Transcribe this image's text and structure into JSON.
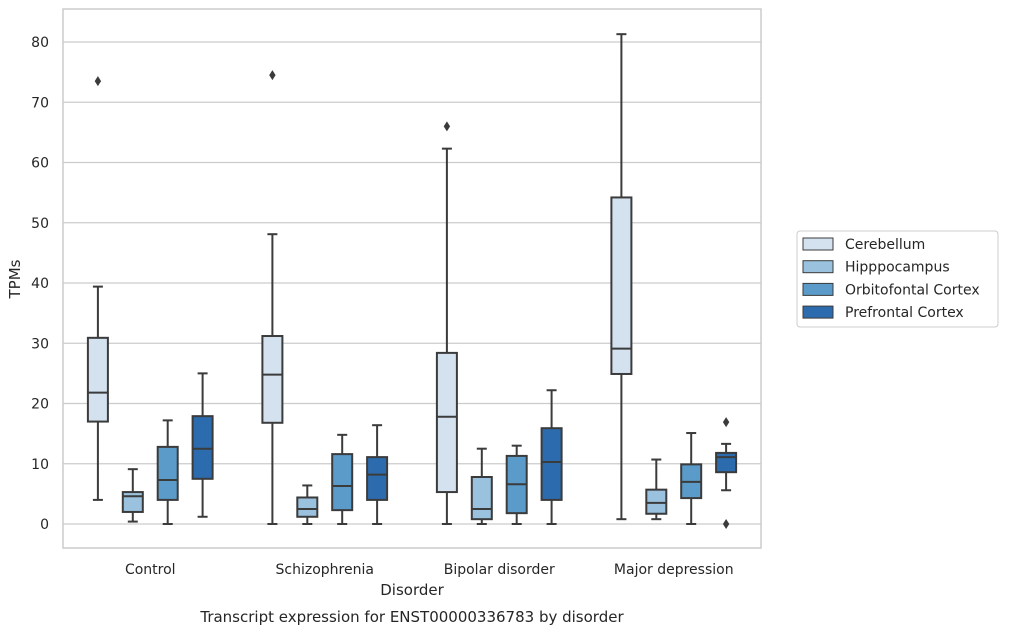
{
  "chart_data": {
    "type": "box",
    "caption": "Transcript expression for ENST00000336783 by disorder",
    "xlabel": "Disorder",
    "ylabel": "TPMs",
    "ylim": [
      -4,
      85
    ],
    "yticks": [
      0,
      10,
      20,
      30,
      40,
      50,
      60,
      70,
      80
    ],
    "grid": "horizontal",
    "legend_position": "right",
    "categories": [
      "Control",
      "Schizophrenia",
      "Bipolar disorder",
      "Major depression"
    ],
    "series": [
      {
        "name": "Cerebellum",
        "color": "#d4e2f0",
        "boxes": [
          {
            "whisker_low": 4.0,
            "q1": 17.0,
            "median": 21.8,
            "q3": 30.9,
            "whisker_high": 39.4,
            "outliers": [
              73.5
            ]
          },
          {
            "whisker_low": 0.0,
            "q1": 16.8,
            "median": 24.8,
            "q3": 31.2,
            "whisker_high": 48.1,
            "outliers": [
              74.5
            ]
          },
          {
            "whisker_low": 0.0,
            "q1": 5.3,
            "median": 17.8,
            "q3": 28.4,
            "whisker_high": 62.3,
            "outliers": [
              66.0
            ]
          },
          {
            "whisker_low": 0.8,
            "q1": 24.9,
            "median": 29.1,
            "q3": 54.2,
            "whisker_high": 81.3,
            "outliers": []
          }
        ]
      },
      {
        "name": "Hipppocampus",
        "color": "#9ac1dd",
        "boxes": [
          {
            "whisker_low": 0.4,
            "q1": 2.0,
            "median": 4.6,
            "q3": 5.3,
            "whisker_high": 9.1,
            "outliers": []
          },
          {
            "whisker_low": 0.0,
            "q1": 1.2,
            "median": 2.5,
            "q3": 4.4,
            "whisker_high": 6.4,
            "outliers": []
          },
          {
            "whisker_low": 0.0,
            "q1": 0.8,
            "median": 2.5,
            "q3": 7.8,
            "whisker_high": 12.5,
            "outliers": []
          },
          {
            "whisker_low": 0.8,
            "q1": 1.7,
            "median": 3.5,
            "q3": 5.7,
            "whisker_high": 10.7,
            "outliers": []
          }
        ]
      },
      {
        "name": "Orbitofontal Cortex",
        "color": "#5a9bc9",
        "boxes": [
          {
            "whisker_low": 0.0,
            "q1": 4.0,
            "median": 7.3,
            "q3": 12.8,
            "whisker_high": 17.2,
            "outliers": []
          },
          {
            "whisker_low": 0.0,
            "q1": 2.3,
            "median": 6.3,
            "q3": 11.6,
            "whisker_high": 14.8,
            "outliers": []
          },
          {
            "whisker_low": 0.0,
            "q1": 1.8,
            "median": 6.6,
            "q3": 11.3,
            "whisker_high": 13.0,
            "outliers": []
          },
          {
            "whisker_low": 0.0,
            "q1": 4.3,
            "median": 7.0,
            "q3": 9.9,
            "whisker_high": 15.1,
            "outliers": []
          }
        ]
      },
      {
        "name": "Prefrontal Cortex",
        "color": "#2c6cae",
        "boxes": [
          {
            "whisker_low": 1.2,
            "q1": 7.5,
            "median": 12.5,
            "q3": 17.9,
            "whisker_high": 25.0,
            "outliers": []
          },
          {
            "whisker_low": 0.0,
            "q1": 4.0,
            "median": 8.2,
            "q3": 11.1,
            "whisker_high": 16.4,
            "outliers": []
          },
          {
            "whisker_low": 0.0,
            "q1": 4.0,
            "median": 10.3,
            "q3": 15.9,
            "whisker_high": 22.2,
            "outliers": []
          },
          {
            "whisker_low": 5.6,
            "q1": 8.6,
            "median": 11.1,
            "q3": 11.8,
            "whisker_high": 13.3,
            "outliers": [
              0.0,
              16.9
            ]
          }
        ]
      }
    ]
  }
}
